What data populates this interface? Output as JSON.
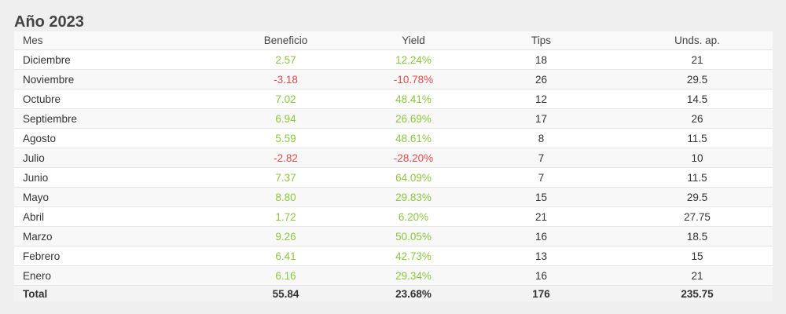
{
  "title": "Año 2023",
  "headers": {
    "mes": "Mes",
    "beneficio": "Beneficio",
    "yield": "Yield",
    "tips": "Tips",
    "unds": "Unds. ap."
  },
  "colors": {
    "positive": "#8cc63f",
    "negative": "#e24b4b"
  },
  "rows": [
    {
      "mes": "Diciembre",
      "beneficio": "2.57",
      "yield": "12.24%",
      "tips": "18",
      "unds": "21",
      "sign": "pos"
    },
    {
      "mes": "Noviembre",
      "beneficio": "-3.18",
      "yield": "-10.78%",
      "tips": "26",
      "unds": "29.5",
      "sign": "neg"
    },
    {
      "mes": "Octubre",
      "beneficio": "7.02",
      "yield": "48.41%",
      "tips": "12",
      "unds": "14.5",
      "sign": "pos"
    },
    {
      "mes": "Septiembre",
      "beneficio": "6.94",
      "yield": "26.69%",
      "tips": "17",
      "unds": "26",
      "sign": "pos"
    },
    {
      "mes": "Agosto",
      "beneficio": "5.59",
      "yield": "48.61%",
      "tips": "8",
      "unds": "11.5",
      "sign": "pos"
    },
    {
      "mes": "Julio",
      "beneficio": "-2.82",
      "yield": "-28.20%",
      "tips": "7",
      "unds": "10",
      "sign": "neg"
    },
    {
      "mes": "Junio",
      "beneficio": "7.37",
      "yield": "64.09%",
      "tips": "7",
      "unds": "11.5",
      "sign": "pos"
    },
    {
      "mes": "Mayo",
      "beneficio": "8.80",
      "yield": "29.83%",
      "tips": "15",
      "unds": "29.5",
      "sign": "pos"
    },
    {
      "mes": "Abril",
      "beneficio": "1.72",
      "yield": "6.20%",
      "tips": "21",
      "unds": "27.75",
      "sign": "pos"
    },
    {
      "mes": "Marzo",
      "beneficio": "9.26",
      "yield": "50.05%",
      "tips": "16",
      "unds": "18.5",
      "sign": "pos"
    },
    {
      "mes": "Febrero",
      "beneficio": "6.41",
      "yield": "42.73%",
      "tips": "13",
      "unds": "15",
      "sign": "pos"
    },
    {
      "mes": "Enero",
      "beneficio": "6.16",
      "yield": "29.34%",
      "tips": "16",
      "unds": "21",
      "sign": "pos"
    }
  ],
  "total": {
    "label": "Total",
    "beneficio": "55.84",
    "yield": "23.68%",
    "tips": "176",
    "unds": "235.75"
  }
}
